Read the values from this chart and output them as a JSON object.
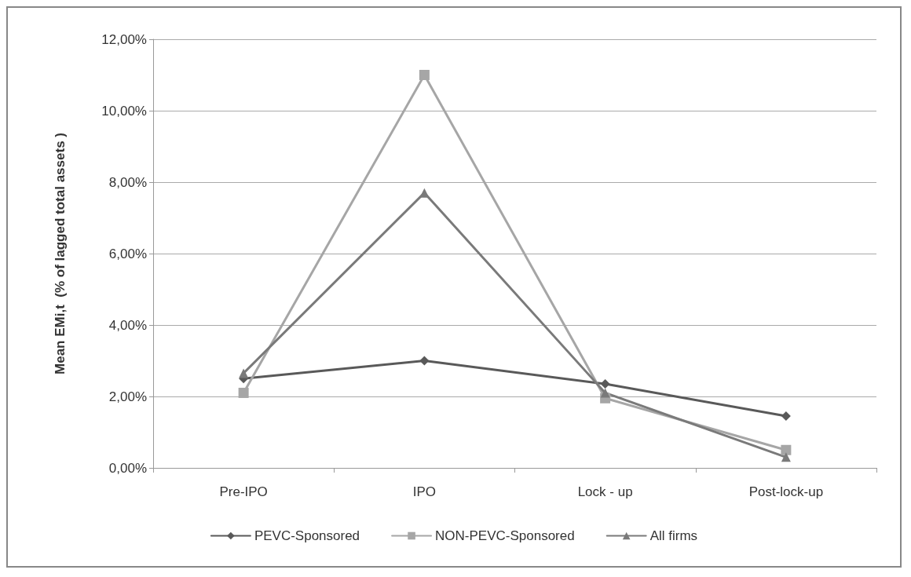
{
  "chart_data": {
    "type": "line",
    "ylabel": "Mean EMi,t  (% of lagged total assets )",
    "categories": [
      "Pre-IPO",
      "IPO",
      "Lock - up",
      "Post-lock-up"
    ],
    "series": [
      {
        "name": "PEVC-Sponsored",
        "color": "#595959",
        "marker": "diamond",
        "values": [
          2.5,
          3.0,
          2.35,
          1.45
        ]
      },
      {
        "name": "NON-PEVC-Sponsored",
        "color": "#a6a6a6",
        "marker": "square",
        "values": [
          2.1,
          11.0,
          1.95,
          0.5
        ]
      },
      {
        "name": "All firms",
        "color": "#7a7a7a",
        "marker": "triangle",
        "values": [
          2.65,
          7.7,
          2.1,
          0.3
        ]
      }
    ],
    "ylim": [
      0,
      12
    ],
    "yticks": [
      {
        "value": 0,
        "label": "0,00%"
      },
      {
        "value": 2,
        "label": "2,00%"
      },
      {
        "value": 4,
        "label": "4,00%"
      },
      {
        "value": 6,
        "label": "6,00%"
      },
      {
        "value": 8,
        "label": "8,00%"
      },
      {
        "value": 10,
        "label": "10,00%"
      },
      {
        "value": 12,
        "label": "12,00%"
      }
    ],
    "grid": "y",
    "legend": "bottom",
    "line_style": "solid"
  }
}
